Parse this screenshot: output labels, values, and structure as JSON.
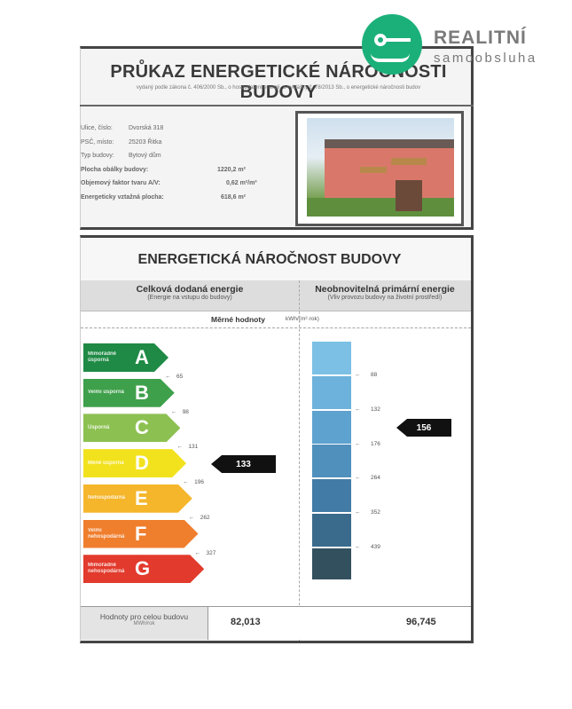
{
  "logo": {
    "brand": "REALITNÍ",
    "sub": "samoobsluha",
    "color": "#1bb07a"
  },
  "header": {
    "title": "PRŮKAZ ENERGETICKÉ NÁROČNOSTI BUDOVY",
    "subtitle": "vydaný podle zákona č. 406/2000 Sb., o hospodaření energií, a vyhlášky č. 78/2013 Sb., o energetické náročnosti budov"
  },
  "info": [
    {
      "label": "Ulice, číslo:",
      "value": "Dvorská 318"
    },
    {
      "label": "PSČ, místo:",
      "value": "25203 Řitka"
    },
    {
      "label": "Typ budovy:",
      "value": "Bytový dům"
    },
    {
      "label": "Plocha obálky budovy:",
      "value": "1220,2 m²"
    },
    {
      "label": "Objemový faktor tvaru A/V:",
      "value": "0,62 m²/m³"
    },
    {
      "label": "Energeticky vztažná plocha:",
      "value": "618,6 m²"
    }
  ],
  "section": {
    "title": "ENERGETICKÁ NÁROČNOST BUDOVY",
    "left_head": "Celková dodaná energie",
    "left_sub": "(Energie na vstupu do budovy)",
    "right_head": "Neobnovitelná primární energie",
    "right_sub": "(Vliv provozu budovy na životní prostředí)",
    "specific": "Měrné hodnoty",
    "unit": "kWh/(m²·rok)"
  },
  "classes": [
    {
      "letter": "A",
      "label": "Mimořádně úsporná",
      "color": "#1f8a45"
    },
    {
      "letter": "B",
      "label": "Velmi úsporná",
      "color": "#3fa04b"
    },
    {
      "letter": "C",
      "label": "Úsporná",
      "color": "#8cc152"
    },
    {
      "letter": "D",
      "label": "Méně úsporná",
      "color": "#f2e21e"
    },
    {
      "letter": "E",
      "label": "Nehospodárná",
      "color": "#f5b62c"
    },
    {
      "letter": "F",
      "label": "Velmi nehospodárná",
      "color": "#ef7e2d"
    },
    {
      "letter": "G",
      "label": "Mimořádně nehospodárná",
      "color": "#e23a2c"
    }
  ],
  "left_thresholds": [
    "65",
    "98",
    "131",
    "196",
    "262",
    "327"
  ],
  "left_value": "133",
  "right_thresholds": [
    "88",
    "132",
    "176",
    "264",
    "352",
    "439"
  ],
  "right_value": "156",
  "right_colors": [
    "#7cc0e6",
    "#6db2dc",
    "#5ea2cf",
    "#5090bd",
    "#427ca6",
    "#3a6a8c",
    "#33505f"
  ],
  "totals": {
    "label": "Hodnoty pro celou budovu",
    "unit": "MWh/rok",
    "left": "82,013",
    "right": "96,745"
  }
}
